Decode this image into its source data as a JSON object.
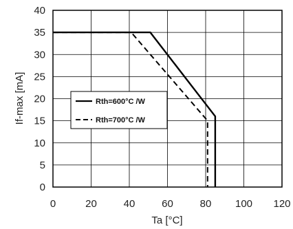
{
  "chart_data": {
    "type": "line",
    "title": "",
    "xlabel": "Ta [°C]",
    "ylabel": "If-max [mA]",
    "xlim": [
      0,
      120
    ],
    "ylim": [
      0,
      40
    ],
    "xticks": [
      0,
      20,
      40,
      60,
      80,
      100,
      120
    ],
    "yticks": [
      0,
      5,
      10,
      15,
      20,
      25,
      30,
      35,
      40
    ],
    "grid": true,
    "legend_position": "center-left",
    "series": [
      {
        "name": "Rth=600°C /W",
        "style": "solid",
        "color": "#000000",
        "x": [
          0,
          51,
          85,
          85
        ],
        "y": [
          35,
          35,
          16,
          0
        ]
      },
      {
        "name": "Rth=700°C /W",
        "style": "dashed",
        "color": "#000000",
        "x": [
          0,
          41,
          81,
          81
        ],
        "y": [
          35,
          35,
          15,
          0
        ]
      }
    ]
  }
}
